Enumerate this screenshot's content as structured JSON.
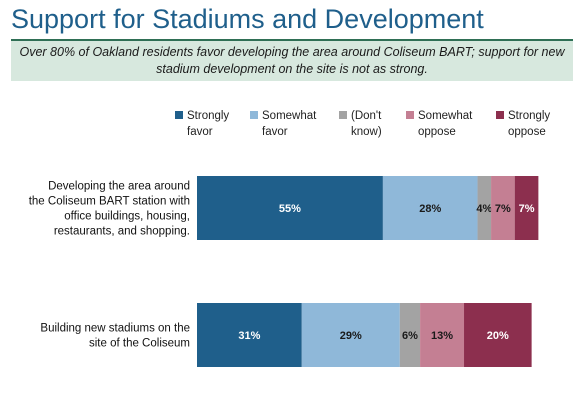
{
  "title": "Support for Stadiums and Development",
  "subtitle": "Over 80% of Oakland residents favor developing the area around Coliseum BART; support for new stadium development on the site is not as strong.",
  "chart_data": {
    "type": "bar",
    "orientation": "horizontal",
    "stacked": true,
    "categories": [
      [
        "Developing the area around",
        "the Coliseum BART station with",
        "office buildings, housing,",
        "restaurants, and shopping."
      ],
      [
        "Building new stadiums on the",
        "site of the Coliseum"
      ]
    ],
    "series": [
      {
        "name": [
          "Strongly",
          "favor"
        ],
        "values": [
          55,
          31
        ],
        "labels": [
          "55%",
          "31%"
        ],
        "color": "#1f5f8b",
        "label_color": "#ffffff"
      },
      {
        "name": [
          "Somewhat",
          "favor"
        ],
        "values": [
          28,
          29
        ],
        "labels": [
          "28%",
          "29%"
        ],
        "color": "#8fb8d9",
        "label_color": "#1a1a1a"
      },
      {
        "name": [
          "(Don't",
          "know)"
        ],
        "values": [
          4,
          6
        ],
        "labels": [
          "4%",
          "6%"
        ],
        "color": "#a3a3a3",
        "label_color": "#1a1a1a"
      },
      {
        "name": [
          "Somewhat",
          "oppose"
        ],
        "values": [
          7,
          13
        ],
        "labels": [
          "7%",
          "13%"
        ],
        "color": "#c47f93",
        "label_color": "#1a1a1a"
      },
      {
        "name": [
          "Strongly",
          "oppose"
        ],
        "values": [
          7,
          20
        ],
        "labels": [
          "7%",
          "20%"
        ],
        "color": "#8c2f4e",
        "label_color": "#ffffff"
      }
    ],
    "xlim": [
      0,
      100
    ],
    "grid": false,
    "legend_position": "top"
  }
}
